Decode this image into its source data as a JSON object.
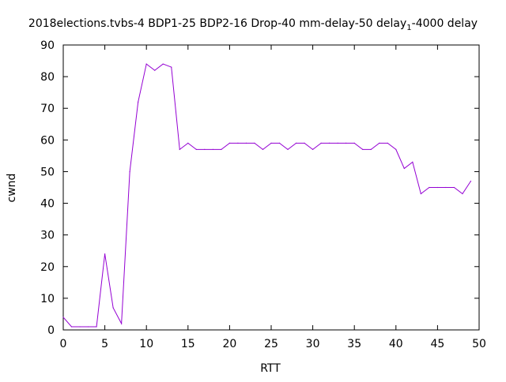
{
  "chart_data": {
    "type": "line",
    "title": {
      "prefix": "2018elections.tvbs-4 BDP1-25 BDP2-16 Drop-40 mm-delay-50 delay",
      "subscript": "1",
      "suffix": "-4000 delay"
    },
    "xlabel": "RTT",
    "ylabel": "cwnd",
    "xlim": [
      0,
      50
    ],
    "ylim": [
      0,
      90
    ],
    "x_ticks": [
      0,
      5,
      10,
      15,
      20,
      25,
      30,
      35,
      40,
      45,
      50
    ],
    "y_ticks": [
      0,
      10,
      20,
      30,
      40,
      50,
      60,
      70,
      80,
      90
    ],
    "grid": false,
    "legend": "none",
    "line_color": "#9400d3",
    "series": [
      {
        "x": [
          0,
          1,
          2,
          3,
          4,
          5,
          6,
          7,
          8,
          9,
          10,
          11,
          12,
          13,
          14,
          15,
          16,
          17,
          18,
          19,
          20,
          21,
          22,
          23,
          24,
          25,
          26,
          27,
          28,
          29,
          30,
          31,
          32,
          33,
          34,
          35,
          36,
          37,
          38,
          39,
          40,
          41,
          42,
          43,
          44,
          45,
          46,
          47,
          48,
          49
        ],
        "y": [
          4,
          1,
          1,
          1,
          1,
          24,
          7,
          2,
          50,
          72,
          84,
          82,
          84,
          83,
          57,
          59,
          57,
          57,
          57,
          57,
          59,
          59,
          59,
          59,
          57,
          59,
          59,
          57,
          59,
          59,
          57,
          59,
          59,
          59,
          59,
          59,
          57,
          57,
          59,
          59,
          57,
          51,
          53,
          43,
          45,
          45,
          45,
          45,
          43,
          47
        ]
      }
    ]
  }
}
